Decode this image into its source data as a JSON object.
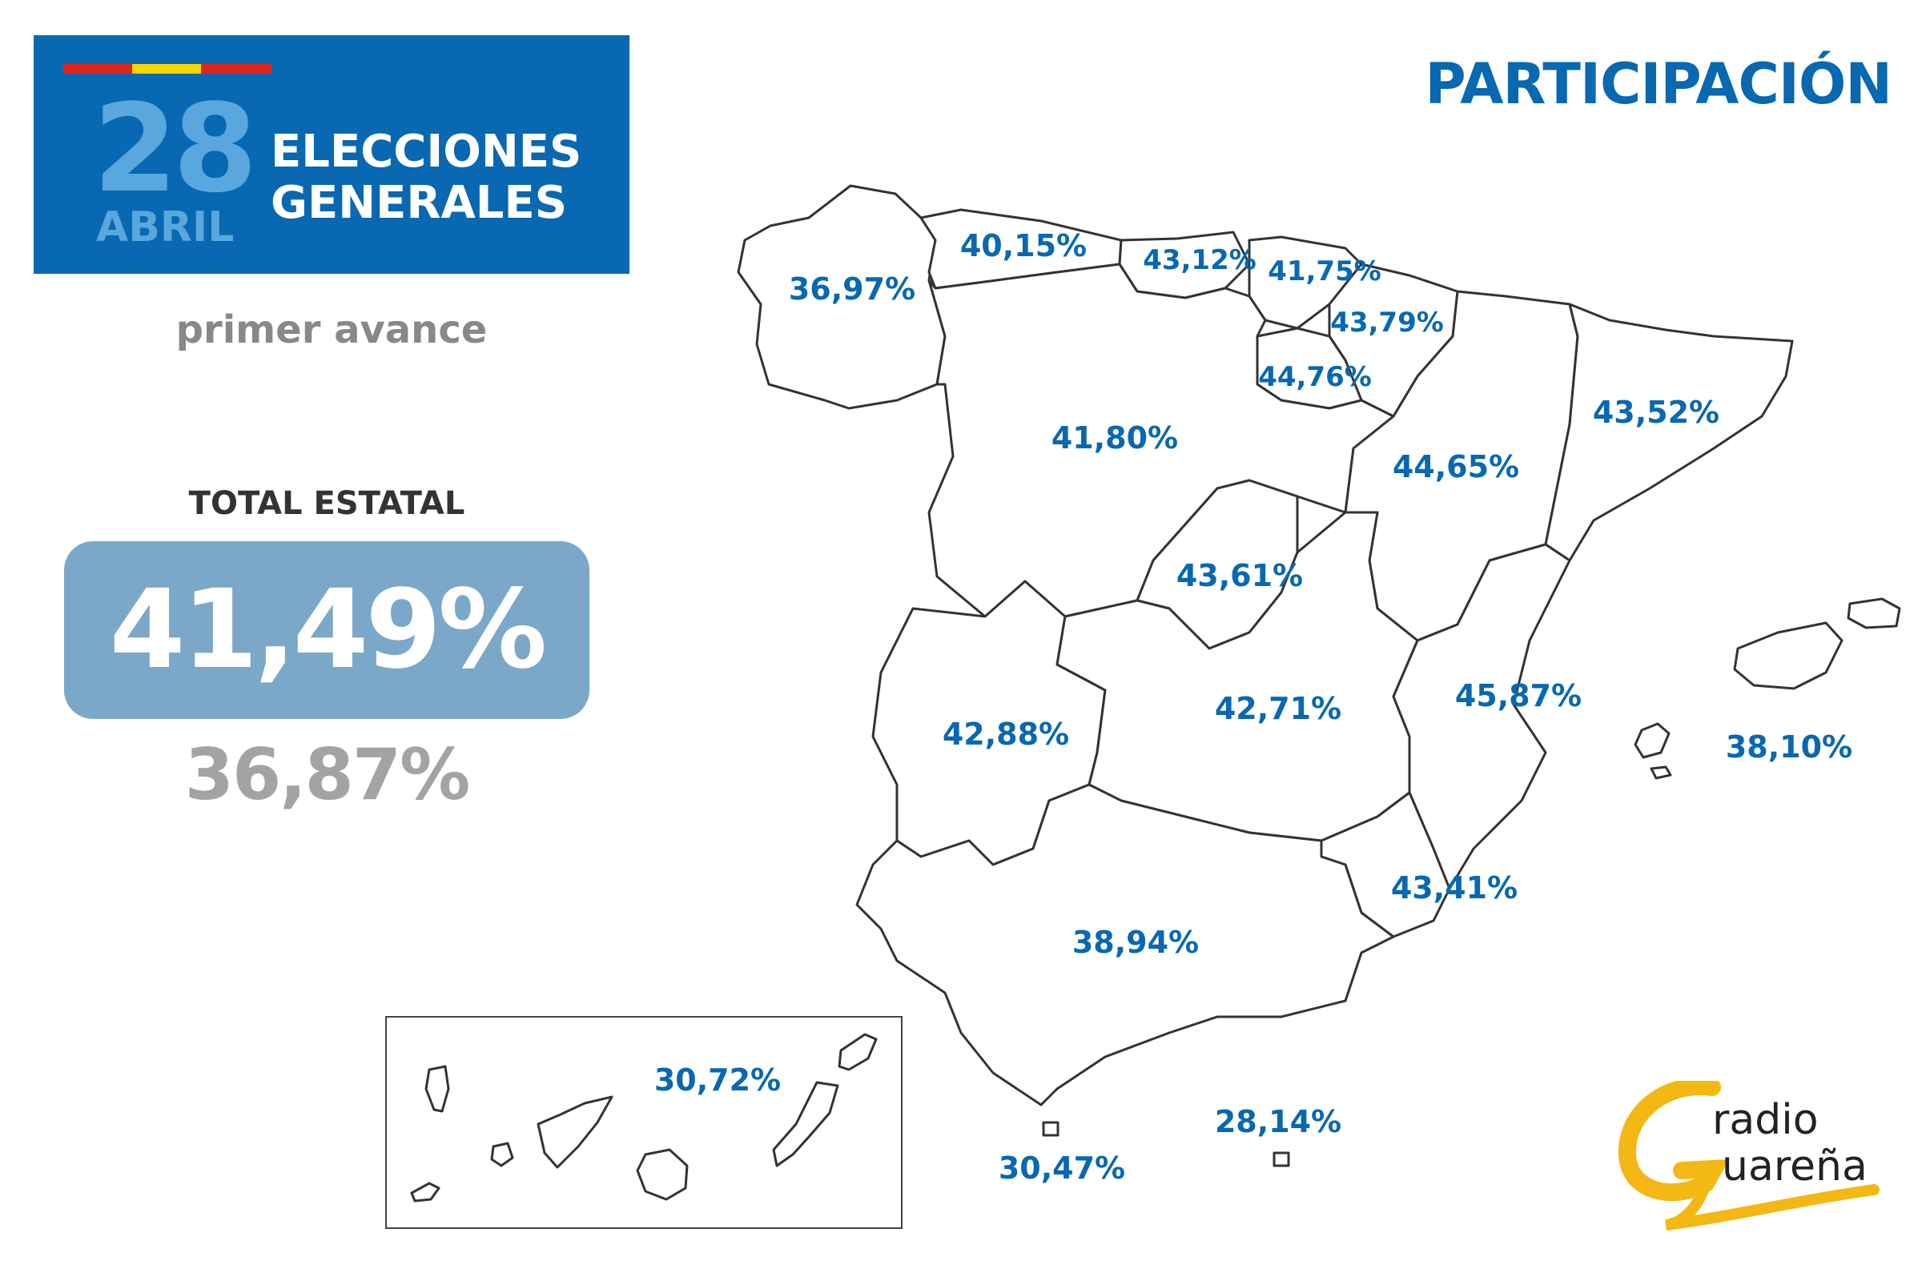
{
  "header": {
    "day": "28",
    "month": "ABRIL",
    "line1": "ELECCIONES",
    "line2": "GENERALES",
    "flag_colors": [
      "#e2231a",
      "#f9d800",
      "#e2231a"
    ]
  },
  "subtitle": "primer avance",
  "title": "PARTICIPACIÓN",
  "total": {
    "label": "TOTAL ESTATAL",
    "value": "41,49%",
    "previous": "36,87%"
  },
  "regions": {
    "galicia": "36,97%",
    "asturias": "40,15%",
    "cantabria": "43,12%",
    "pais_vasco": "41,75%",
    "navarra": "43,79%",
    "la_rioja": "44,76%",
    "castilla_leon": "41,80%",
    "aragon": "44,65%",
    "cataluna": "43,52%",
    "madrid": "43,61%",
    "extremadura": "42,88%",
    "castilla_la_mancha": "42,71%",
    "valencia": "45,87%",
    "baleares": "38,10%",
    "murcia": "43,41%",
    "andalucia": "38,94%",
    "canarias": "30,72%",
    "ceuta": "30,47%",
    "melilla": "28,14%"
  },
  "logo": {
    "line1": "radio",
    "line2": "uareña",
    "accent": "#f3b813"
  },
  "colors": {
    "brand_blue": "#0868b1",
    "total_box": "#7ba8c8"
  }
}
